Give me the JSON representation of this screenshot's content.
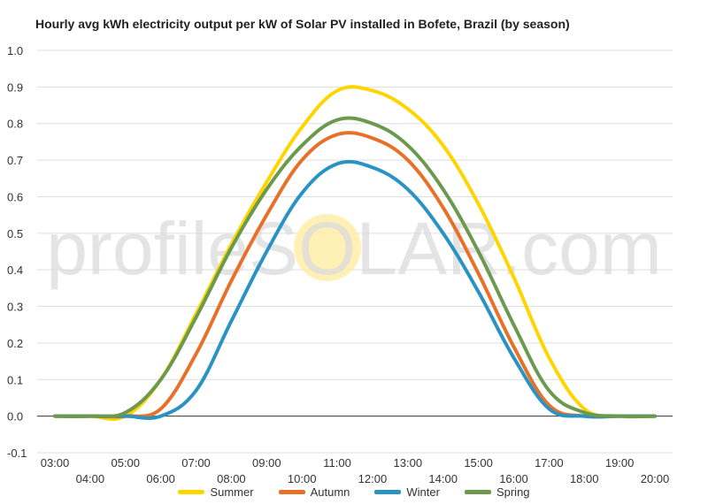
{
  "chart_data": {
    "type": "line",
    "title": "Hourly avg kWh electricity output per kW of Solar PV installed in Bofete, Brazil (by season)",
    "xlabel": "",
    "ylabel": "",
    "ylim": [
      -0.1,
      1.0
    ],
    "yticks": [
      "1.0",
      "0.9",
      "0.8",
      "0.7",
      "0.6",
      "0.5",
      "0.4",
      "0.3",
      "0.2",
      "0.1",
      "0.0",
      "-0.1"
    ],
    "ytick_values": [
      1.0,
      0.9,
      0.8,
      0.7,
      0.6,
      0.5,
      0.4,
      0.3,
      0.2,
      0.1,
      0.0,
      -0.1
    ],
    "categories": [
      "03:00",
      "04:00",
      "05:00",
      "06:00",
      "07:00",
      "08:00",
      "09:00",
      "10:00",
      "11:00",
      "12:00",
      "13:00",
      "14:00",
      "15:00",
      "16:00",
      "17:00",
      "18:00",
      "19:00",
      "20:00"
    ],
    "grid": true,
    "legend_position": "bottom",
    "watermark": "profileSOLAR.com",
    "series": [
      {
        "name": "Summer",
        "color": "#FFD500",
        "values": [
          0.0,
          0.0,
          0.0,
          0.1,
          0.28,
          0.47,
          0.64,
          0.79,
          0.89,
          0.89,
          0.84,
          0.74,
          0.58,
          0.38,
          0.16,
          0.02,
          0.0,
          0.0
        ]
      },
      {
        "name": "Autumn",
        "color": "#E8712A",
        "values": [
          0.0,
          0.0,
          0.0,
          0.02,
          0.17,
          0.37,
          0.55,
          0.7,
          0.77,
          0.76,
          0.7,
          0.57,
          0.39,
          0.19,
          0.03,
          0.0,
          0.0,
          0.0
        ]
      },
      {
        "name": "Winter",
        "color": "#2A93C3",
        "values": [
          0.0,
          0.0,
          0.0,
          0.0,
          0.07,
          0.26,
          0.45,
          0.61,
          0.69,
          0.68,
          0.62,
          0.5,
          0.34,
          0.16,
          0.02,
          0.0,
          0.0,
          0.0
        ]
      },
      {
        "name": "Spring",
        "color": "#6B9A4E",
        "values": [
          0.0,
          0.0,
          0.01,
          0.1,
          0.27,
          0.46,
          0.62,
          0.74,
          0.81,
          0.8,
          0.74,
          0.62,
          0.45,
          0.25,
          0.07,
          0.01,
          0.0,
          0.0
        ]
      }
    ]
  }
}
